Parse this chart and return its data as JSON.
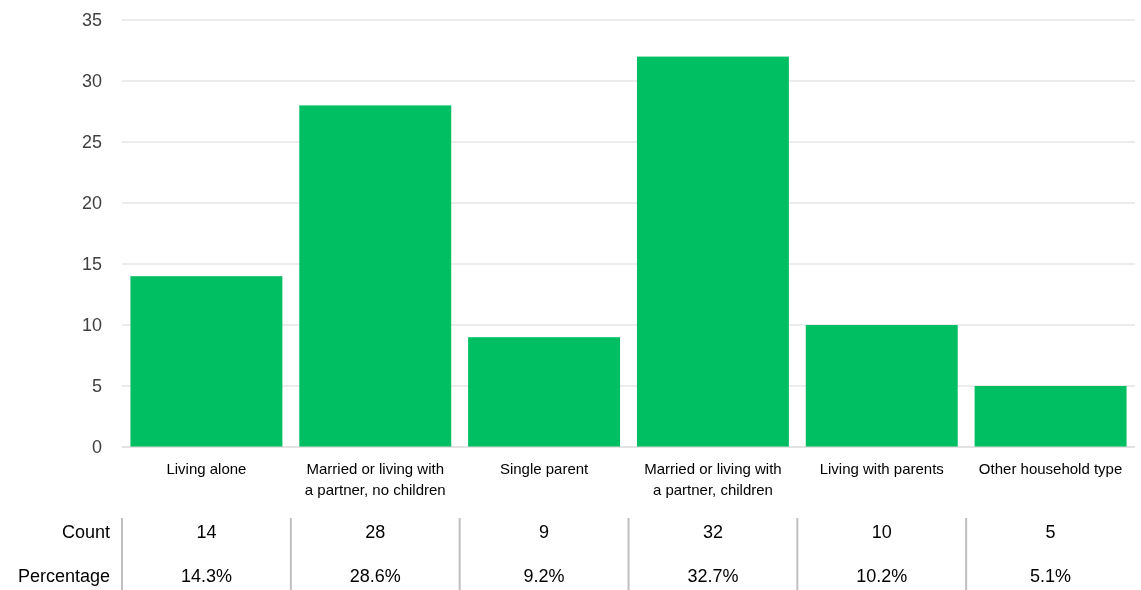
{
  "chart_data": {
    "type": "bar",
    "categories": [
      "Living alone",
      "Married or living with a partner, no children",
      "Single parent",
      "Married or living with a partner, children",
      "Living with parents",
      "Other household type"
    ],
    "values": [
      14,
      28,
      9,
      32,
      10,
      5
    ],
    "color": "#00bf63",
    "ylim": [
      0,
      35
    ],
    "yticks": [
      0,
      5,
      10,
      15,
      20,
      25,
      30,
      35
    ],
    "grid": "y",
    "data_labels": true,
    "annotations": [
      "Count",
      "Percentage",
      "14.3%",
      "28.6%",
      "9.2%",
      "32.7%",
      "10.2%",
      "5.1%"
    ]
  }
}
